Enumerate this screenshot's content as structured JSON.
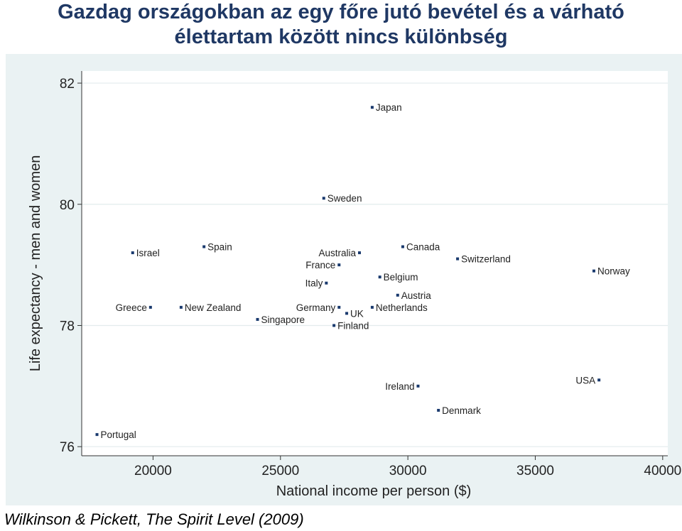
{
  "title": {
    "line1": "Gazdag országokban az egy főre jutó bevétel és a várható",
    "line2": "élettartam között nincs különbség"
  },
  "source": "Wilkinson & Pickett, The Spirit Level (2009)",
  "chart_data": {
    "type": "scatter",
    "xlabel": "National income per person ($)",
    "ylabel": "Life expectancy - men and women",
    "xlim": [
      17200,
      40200
    ],
    "ylim": [
      75.85,
      82.2
    ],
    "xticks": [
      20000,
      25000,
      30000,
      35000,
      40000
    ],
    "xtick_labels": [
      "20000",
      "25000",
      "30000",
      "35000",
      "40000"
    ],
    "yticks": [
      76,
      78,
      80,
      82
    ],
    "ytick_labels": [
      "76",
      "78",
      "80",
      "82"
    ],
    "grid": "horizontal",
    "marker_color": "#1a3a6e",
    "points": [
      {
        "label": "Japan",
        "x": 28600,
        "y": 81.6,
        "side": "right"
      },
      {
        "label": "Sweden",
        "x": 26700,
        "y": 80.1,
        "side": "right"
      },
      {
        "label": "Israel",
        "x": 19200,
        "y": 79.2,
        "side": "right"
      },
      {
        "label": "Spain",
        "x": 22000,
        "y": 79.3,
        "side": "right"
      },
      {
        "label": "Australia",
        "x": 28100,
        "y": 79.2,
        "side": "left"
      },
      {
        "label": "Canada",
        "x": 29800,
        "y": 79.3,
        "side": "right"
      },
      {
        "label": "Switzerland",
        "x": 31950,
        "y": 79.1,
        "side": "right"
      },
      {
        "label": "Norway",
        "x": 37300,
        "y": 78.9,
        "side": "right"
      },
      {
        "label": "France",
        "x": 27300,
        "y": 79.0,
        "side": "left"
      },
      {
        "label": "Belgium",
        "x": 28900,
        "y": 78.8,
        "side": "right"
      },
      {
        "label": "Italy",
        "x": 26800,
        "y": 78.7,
        "side": "left"
      },
      {
        "label": "Austria",
        "x": 29600,
        "y": 78.5,
        "side": "right"
      },
      {
        "label": "Greece",
        "x": 19900,
        "y": 78.3,
        "side": "left"
      },
      {
        "label": "New Zealand",
        "x": 21100,
        "y": 78.3,
        "side": "right"
      },
      {
        "label": "Germany",
        "x": 27300,
        "y": 78.3,
        "side": "left"
      },
      {
        "label": "UK",
        "x": 27600,
        "y": 78.2,
        "side": "right"
      },
      {
        "label": "Netherlands",
        "x": 28600,
        "y": 78.3,
        "side": "right"
      },
      {
        "label": "Singapore",
        "x": 24100,
        "y": 78.1,
        "side": "right"
      },
      {
        "label": "Finland",
        "x": 27100,
        "y": 78.0,
        "side": "right"
      },
      {
        "label": "Ireland",
        "x": 30400,
        "y": 77.0,
        "side": "left"
      },
      {
        "label": "USA",
        "x": 37500,
        "y": 77.1,
        "side": "left"
      },
      {
        "label": "Denmark",
        "x": 31200,
        "y": 76.6,
        "side": "right"
      },
      {
        "label": "Portugal",
        "x": 17800,
        "y": 76.2,
        "side": "right"
      }
    ]
  }
}
